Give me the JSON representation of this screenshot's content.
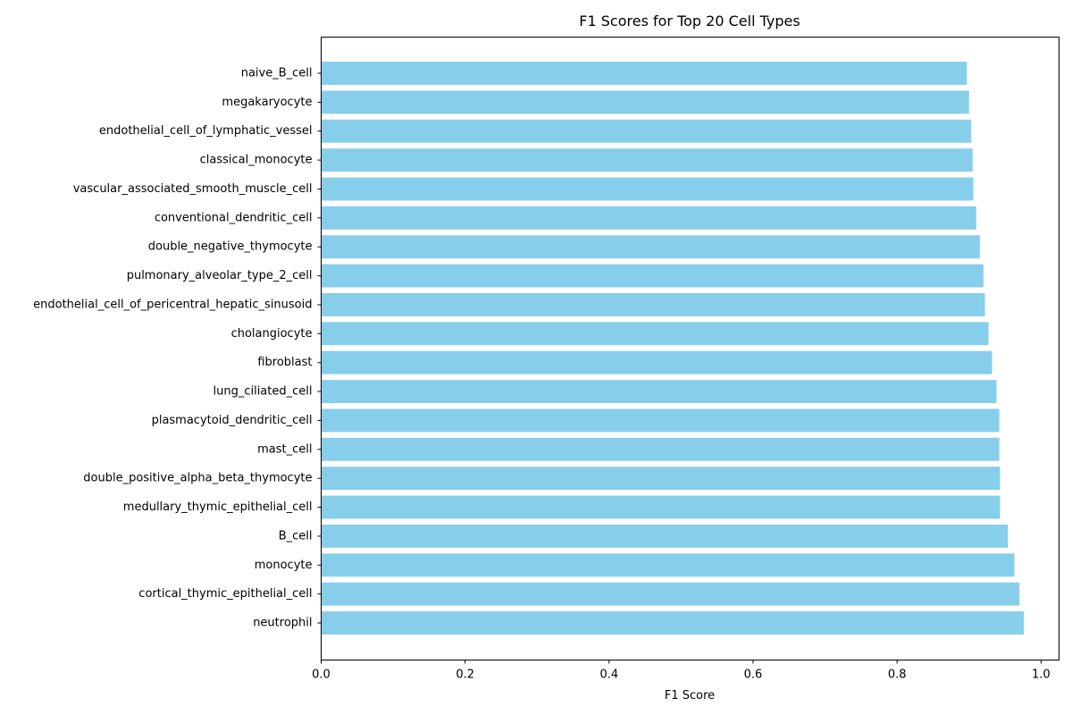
{
  "chart_data": {
    "type": "bar",
    "orientation": "horizontal",
    "title": "F1 Scores for Top 20 Cell Types",
    "xlabel": "F1 Score",
    "ylabel": "",
    "xlim": [
      0.0,
      1.025
    ],
    "xticks": [
      "0.0",
      "0.2",
      "0.4",
      "0.6",
      "0.8",
      "1.0"
    ],
    "grid": false,
    "bar_color": "#87CEEB",
    "categories": [
      "neutrophil",
      "cortical_thymic_epithelial_cell",
      "monocyte",
      "B_cell",
      "medullary_thymic_epithelial_cell",
      "double_positive_alpha_beta_thymocyte",
      "mast_cell",
      "plasmacytoid_dendritic_cell",
      "lung_ciliated_cell",
      "fibroblast",
      "cholangiocyte",
      "endothelial_cell_of_pericentral_hepatic_sinusoid",
      "pulmonary_alveolar_type_2_cell",
      "double_negative_thymocyte",
      "conventional_dendritic_cell",
      "vascular_associated_smooth_muscle_cell",
      "classical_monocyte",
      "endothelial_cell_of_lymphatic_vessel",
      "megakaryocyte",
      "naive_B_cell"
    ],
    "values": [
      0.976,
      0.97,
      0.963,
      0.954,
      0.943,
      0.943,
      0.942,
      0.942,
      0.938,
      0.932,
      0.927,
      0.922,
      0.92,
      0.915,
      0.91,
      0.906,
      0.905,
      0.903,
      0.9,
      0.897
    ]
  }
}
